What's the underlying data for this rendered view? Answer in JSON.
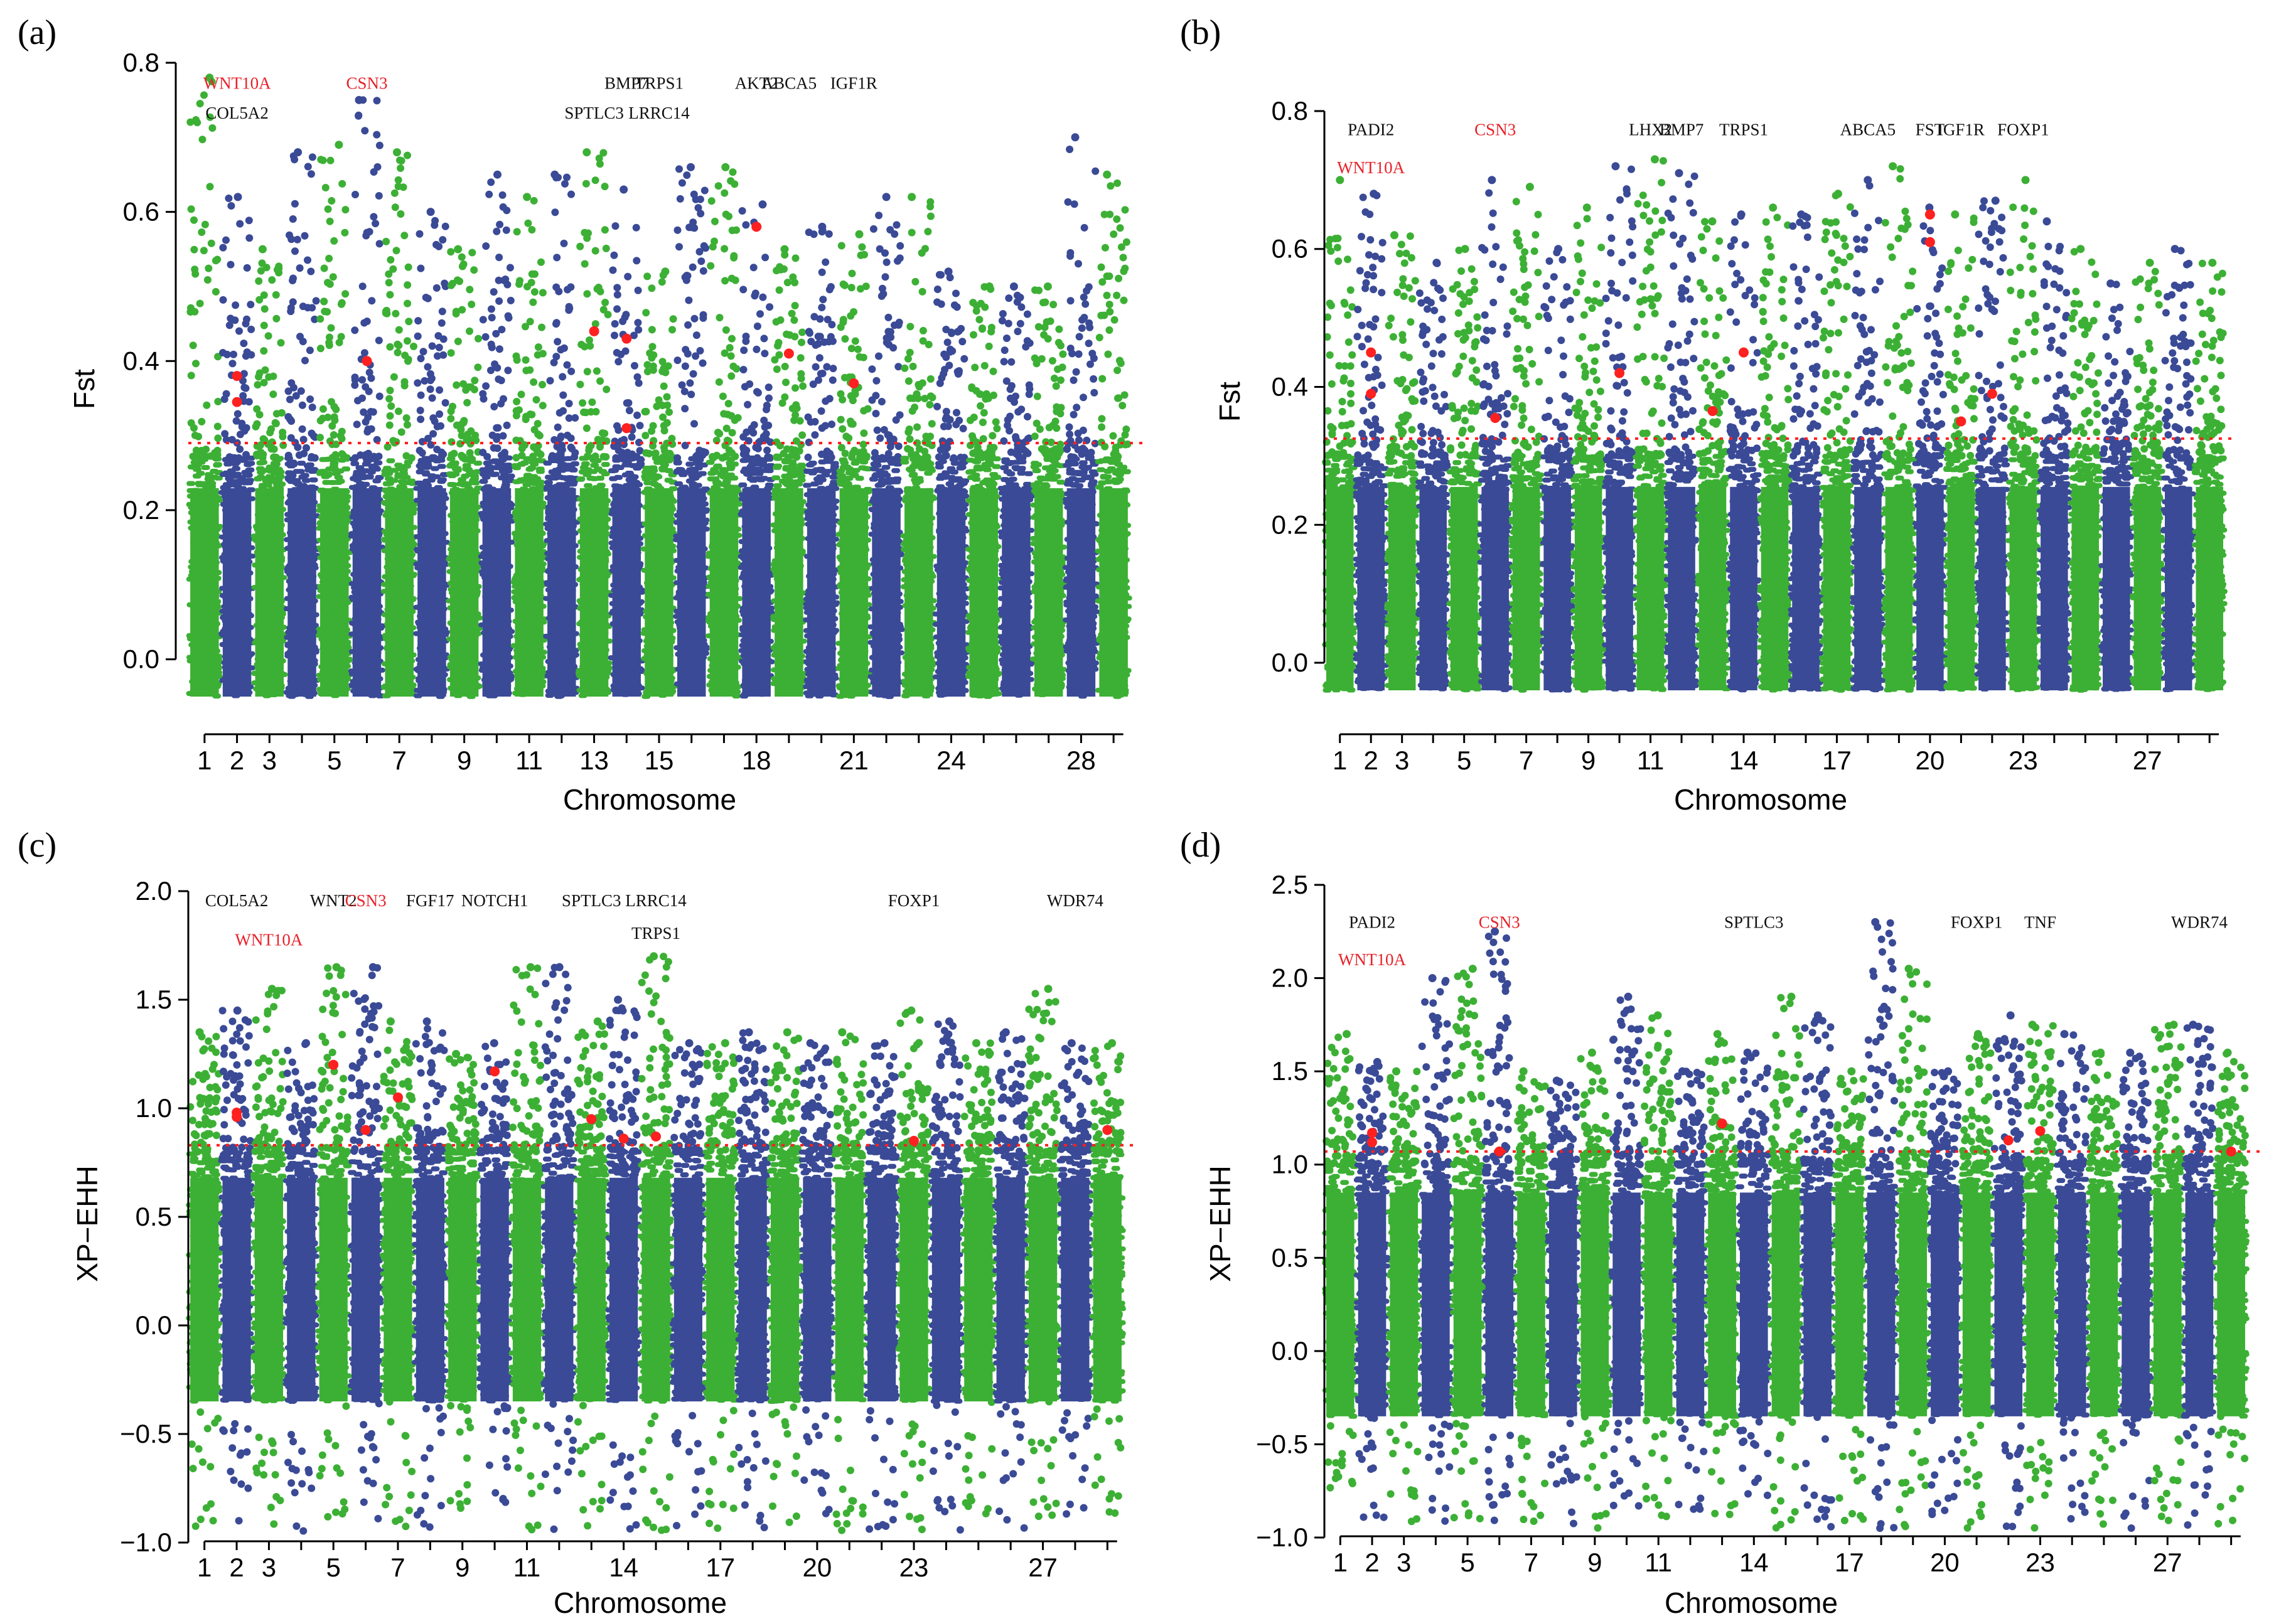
{
  "colors": {
    "blue": "#3a4a96",
    "green": "#3cb034",
    "threshold": "#ff2020",
    "highlight": "#ff2020",
    "gene_black": "#111111",
    "gene_red": "#e8222a"
  },
  "chart_data": [
    {
      "id": "a",
      "panel_label": "(a)",
      "type": "scatter",
      "subtype": "manhattan",
      "ylabel": "Fst",
      "xlabel": "Chromosome",
      "ylim": [
        -0.05,
        0.8
      ],
      "yticks": [
        0.0,
        0.2,
        0.4,
        0.6,
        0.8
      ],
      "ytick_labels": [
        "0.0",
        "0.2",
        "0.4",
        "0.6",
        "0.8"
      ],
      "chromosome_count": 29,
      "xtick_labels": [
        "1",
        "2",
        "3",
        "5",
        "7",
        "9",
        "11",
        "13",
        "15",
        "18",
        "21",
        "24",
        "28"
      ],
      "xtick_chromosomes": [
        1,
        2,
        3,
        5,
        7,
        9,
        11,
        13,
        15,
        18,
        21,
        24,
        28
      ],
      "threshold": 0.29,
      "base_range": [
        -0.05,
        0.27
      ],
      "chrom_peaks": [
        0.78,
        0.62,
        0.55,
        0.68,
        0.69,
        0.75,
        0.68,
        0.6,
        0.55,
        0.65,
        0.62,
        0.65,
        0.68,
        0.63,
        0.52,
        0.66,
        0.66,
        0.61,
        0.55,
        0.58,
        0.57,
        0.62,
        0.62,
        0.52,
        0.5,
        0.5,
        0.5,
        0.7,
        0.65
      ],
      "highlights": [
        {
          "chrom": 2,
          "value": 0.345
        },
        {
          "chrom": 2,
          "value": 0.38
        },
        {
          "chrom": 6,
          "value": 0.4
        },
        {
          "chrom": 13,
          "value": 0.44
        },
        {
          "chrom": 14,
          "value": 0.31
        },
        {
          "chrom": 14,
          "value": 0.43
        },
        {
          "chrom": 18,
          "value": 0.58
        },
        {
          "chrom": 19,
          "value": 0.41
        },
        {
          "chrom": 21,
          "value": 0.37
        }
      ],
      "genes": [
        {
          "label": "WNT10A",
          "color": "red",
          "chrom": 2,
          "value": 0.765
        },
        {
          "label": "COL5A2",
          "color": "black",
          "chrom": 2,
          "value": 0.725
        },
        {
          "label": "CSN3",
          "color": "red",
          "chrom": 6,
          "value": 0.765
        },
        {
          "label": "BMP7",
          "color": "black",
          "chrom": 14,
          "value": 0.765
        },
        {
          "label": "TRPS1",
          "color": "black",
          "chrom": 15,
          "value": 0.765
        },
        {
          "label": "SPTLC3",
          "color": "black",
          "chrom": 13,
          "value": 0.725
        },
        {
          "label": "LRRC14",
          "color": "black",
          "chrom": 15,
          "value": 0.725
        },
        {
          "label": "AKT2",
          "color": "black",
          "chrom": 18,
          "value": 0.765
        },
        {
          "label": "ABCA5",
          "color": "black",
          "chrom": 19,
          "value": 0.765
        },
        {
          "label": "IGF1R",
          "color": "black",
          "chrom": 21,
          "value": 0.765
        }
      ]
    },
    {
      "id": "b",
      "panel_label": "(b)",
      "type": "scatter",
      "subtype": "manhattan",
      "ylabel": "Fst",
      "xlabel": "Chromosome",
      "ylim": [
        -0.04,
        0.82
      ],
      "yticks": [
        0.0,
        0.2,
        0.4,
        0.6,
        0.8
      ],
      "ytick_labels": [
        "0.0",
        "0.2",
        "0.4",
        "0.6",
        "0.8"
      ],
      "chromosome_count": 29,
      "xtick_labels": [
        "1",
        "2",
        "3",
        "5",
        "7",
        "9",
        "11",
        "14",
        "17",
        "20",
        "23",
        "27"
      ],
      "xtick_chromosomes": [
        1,
        2,
        3,
        5,
        7,
        9,
        11,
        14,
        17,
        20,
        23,
        27
      ],
      "threshold": 0.325,
      "base_range": [
        -0.04,
        0.3
      ],
      "chrom_peaks": [
        0.7,
        0.68,
        0.62,
        0.58,
        0.6,
        0.7,
        0.69,
        0.6,
        0.66,
        0.72,
        0.73,
        0.71,
        0.64,
        0.65,
        0.66,
        0.65,
        0.68,
        0.7,
        0.72,
        0.66,
        0.65,
        0.67,
        0.7,
        0.64,
        0.6,
        0.55,
        0.58,
        0.6,
        0.58
      ],
      "highlights": [
        {
          "chrom": 2,
          "value": 0.39
        },
        {
          "chrom": 2,
          "value": 0.45
        },
        {
          "chrom": 6,
          "value": 0.355
        },
        {
          "chrom": 10,
          "value": 0.42
        },
        {
          "chrom": 13,
          "value": 0.365
        },
        {
          "chrom": 14,
          "value": 0.45
        },
        {
          "chrom": 20,
          "value": 0.61
        },
        {
          "chrom": 20,
          "value": 0.65
        },
        {
          "chrom": 21,
          "value": 0.35
        },
        {
          "chrom": 22,
          "value": 0.39
        }
      ],
      "genes": [
        {
          "label": "PADI2",
          "color": "black",
          "chrom": 2,
          "value": 0.765
        },
        {
          "label": "WNT10A",
          "color": "red",
          "chrom": 2,
          "value": 0.71
        },
        {
          "label": "CSN3",
          "color": "red",
          "chrom": 6,
          "value": 0.765
        },
        {
          "label": "LHX2",
          "color": "black",
          "chrom": 11,
          "value": 0.765
        },
        {
          "label": "BMP7",
          "color": "black",
          "chrom": 12,
          "value": 0.765
        },
        {
          "label": "TRPS1",
          "color": "black",
          "chrom": 14,
          "value": 0.765
        },
        {
          "label": "ABCA5",
          "color": "black",
          "chrom": 18,
          "value": 0.765
        },
        {
          "label": "FST",
          "color": "black",
          "chrom": 20,
          "value": 0.765
        },
        {
          "label": "IGF1R",
          "color": "black",
          "chrom": 21,
          "value": 0.765
        },
        {
          "label": "FOXP1",
          "color": "black",
          "chrom": 23,
          "value": 0.765
        }
      ]
    },
    {
      "id": "c",
      "panel_label": "(c)",
      "type": "scatter",
      "subtype": "manhattan",
      "ylabel": "XP−EHH",
      "xlabel": "Chromosome",
      "ylim": [
        -1.0,
        2.0
      ],
      "yticks": [
        -1.0,
        -0.5,
        0.0,
        0.5,
        1.0,
        1.5,
        2.0
      ],
      "ytick_labels": [
        "−1.0",
        "−0.5",
        "0.0",
        "0.5",
        "1.0",
        "1.5",
        "2.0"
      ],
      "chromosome_count": 29,
      "xtick_labels": [
        "1",
        "2",
        "3",
        "5",
        "7",
        "9",
        "11",
        "14",
        "17",
        "20",
        "23",
        "27"
      ],
      "xtick_chromosomes": [
        1,
        2,
        3,
        5,
        7,
        9,
        11,
        14,
        17,
        20,
        23,
        27
      ],
      "threshold": 0.83,
      "base_range": [
        -0.35,
        0.8
      ],
      "low_tail": -0.95,
      "chrom_peaks": [
        1.35,
        1.45,
        1.55,
        1.3,
        1.65,
        1.65,
        1.4,
        1.4,
        1.25,
        1.3,
        1.65,
        1.65,
        1.4,
        1.5,
        1.7,
        1.3,
        1.3,
        1.35,
        1.35,
        1.3,
        1.35,
        1.3,
        1.45,
        1.4,
        1.3,
        1.35,
        1.55,
        1.3,
        1.3
      ],
      "highlights": [
        {
          "chrom": 2,
          "value": 0.98
        },
        {
          "chrom": 2,
          "value": 0.96
        },
        {
          "chrom": 5,
          "value": 1.2
        },
        {
          "chrom": 6,
          "value": 0.9
        },
        {
          "chrom": 7,
          "value": 1.05
        },
        {
          "chrom": 10,
          "value": 1.17
        },
        {
          "chrom": 13,
          "value": 0.95
        },
        {
          "chrom": 14,
          "value": 0.86
        },
        {
          "chrom": 15,
          "value": 0.87
        },
        {
          "chrom": 23,
          "value": 0.85
        },
        {
          "chrom": 29,
          "value": 0.9
        }
      ],
      "genes": [
        {
          "label": "COL5A2",
          "color": "black",
          "chrom": 2,
          "value": 1.93
        },
        {
          "label": "WNT10A",
          "color": "red",
          "chrom": 3,
          "value": 1.75
        },
        {
          "label": "WNT2",
          "color": "black",
          "chrom": 5,
          "value": 1.93
        },
        {
          "label": "CSN3",
          "color": "red",
          "chrom": 6,
          "value": 1.93
        },
        {
          "label": "FGF17",
          "color": "black",
          "chrom": 8,
          "value": 1.93
        },
        {
          "label": "NOTCH1",
          "color": "black",
          "chrom": 10,
          "value": 1.93
        },
        {
          "label": "SPTLC3",
          "color": "black",
          "chrom": 13,
          "value": 1.93
        },
        {
          "label": "LRRC14",
          "color": "black",
          "chrom": 15,
          "value": 1.93
        },
        {
          "label": "TRPS1",
          "color": "black",
          "chrom": 15,
          "value": 1.78
        },
        {
          "label": "FOXP1",
          "color": "black",
          "chrom": 23,
          "value": 1.93
        },
        {
          "label": "WDR74",
          "color": "black",
          "chrom": 28,
          "value": 1.93
        }
      ]
    },
    {
      "id": "d",
      "panel_label": "(d)",
      "type": "scatter",
      "subtype": "manhattan",
      "ylabel": "XP−EHH",
      "xlabel": "Chromosome",
      "ylim": [
        -1.0,
        2.5
      ],
      "yticks": [
        -1.0,
        -0.5,
        0.0,
        0.5,
        1.0,
        1.5,
        2.0,
        2.5
      ],
      "ytick_labels": [
        "−1.0",
        "−0.5",
        "0.0",
        "0.5",
        "1.0",
        "1.5",
        "2.0",
        "2.5"
      ],
      "chromosome_count": 29,
      "xtick_labels": [
        "1",
        "2",
        "3",
        "5",
        "7",
        "9",
        "11",
        "14",
        "17",
        "20",
        "23",
        "27"
      ],
      "xtick_chromosomes": [
        1,
        2,
        3,
        5,
        7,
        9,
        11,
        14,
        17,
        20,
        23,
        27
      ],
      "threshold": 1.07,
      "base_range": [
        -0.35,
        1.0
      ],
      "low_tail": -0.95,
      "chrom_peaks": [
        1.7,
        1.55,
        1.5,
        2.0,
        2.05,
        2.25,
        1.5,
        1.45,
        1.6,
        1.9,
        1.8,
        1.5,
        1.7,
        1.6,
        1.9,
        1.8,
        1.5,
        2.3,
        2.05,
        1.5,
        1.7,
        1.8,
        1.75,
        1.7,
        1.6,
        1.6,
        1.75,
        1.75,
        1.6
      ],
      "highlights": [
        {
          "chrom": 2,
          "value": 1.12
        },
        {
          "chrom": 2,
          "value": 1.17
        },
        {
          "chrom": 6,
          "value": 1.07
        },
        {
          "chrom": 13,
          "value": 1.22
        },
        {
          "chrom": 22,
          "value": 1.13
        },
        {
          "chrom": 23,
          "value": 1.18
        },
        {
          "chrom": 29,
          "value": 1.07
        }
      ],
      "genes": [
        {
          "label": "PADI2",
          "color": "black",
          "chrom": 2,
          "value": 2.27
        },
        {
          "label": "WNT10A",
          "color": "red",
          "chrom": 2,
          "value": 2.07
        },
        {
          "label": "CSN3",
          "color": "red",
          "chrom": 6,
          "value": 2.27
        },
        {
          "label": "SPTLC3",
          "color": "black",
          "chrom": 14,
          "value": 2.27
        },
        {
          "label": "FOXP1",
          "color": "black",
          "chrom": 21,
          "value": 2.27
        },
        {
          "label": "TNF",
          "color": "black",
          "chrom": 23,
          "value": 2.27
        },
        {
          "label": "WDR74",
          "color": "black",
          "chrom": 28,
          "value": 2.27
        }
      ]
    }
  ]
}
